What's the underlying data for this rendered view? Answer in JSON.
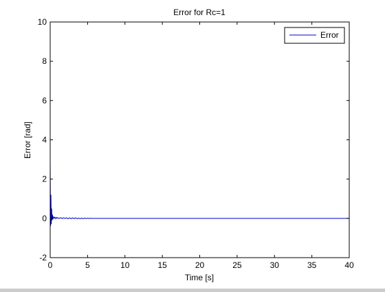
{
  "chart_data": {
    "type": "line",
    "title": "Error for Rc=1",
    "xlabel": "Time [s]",
    "ylabel": "Error [rad]",
    "xlim": [
      0,
      40
    ],
    "ylim": [
      -2,
      10
    ],
    "xticks": [
      0,
      5,
      10,
      15,
      20,
      25,
      30,
      35,
      40
    ],
    "yticks": [
      -2,
      0,
      2,
      4,
      6,
      8,
      10
    ],
    "grid": false,
    "legend_position": "top-right",
    "series": [
      {
        "name": "Error",
        "color": "#0000cc",
        "x": [
          0,
          0.05,
          0.1,
          0.15,
          0.2,
          0.25,
          0.3,
          0.35,
          0.4,
          0.5,
          0.6,
          0.7,
          0.8,
          0.9,
          1.0,
          1.2,
          1.4,
          1.6,
          1.8,
          2.0,
          2.2,
          2.4,
          2.6,
          2.8,
          3.0,
          3.2,
          3.4,
          3.6,
          3.8,
          4.0,
          4.2,
          4.4,
          4.6,
          4.8,
          5.0,
          5.2,
          5.4,
          5.6,
          6,
          8,
          10,
          15,
          20,
          25,
          30,
          35,
          40
        ],
        "y": [
          2.85,
          -0.4,
          1.2,
          -0.3,
          0.5,
          -0.1,
          0.2,
          -0.05,
          0.1,
          0.0,
          0.06,
          -0.01,
          0.05,
          0.0,
          0.04,
          -0.01,
          0.04,
          -0.01,
          0.03,
          -0.01,
          0.03,
          -0.02,
          0.03,
          -0.02,
          0.03,
          -0.02,
          0.03,
          -0.02,
          0.02,
          -0.02,
          0.02,
          -0.02,
          0.02,
          -0.01,
          0.01,
          -0.01,
          0.01,
          0.0,
          0,
          0,
          0,
          0,
          0,
          0,
          0,
          0,
          0
        ]
      }
    ]
  }
}
